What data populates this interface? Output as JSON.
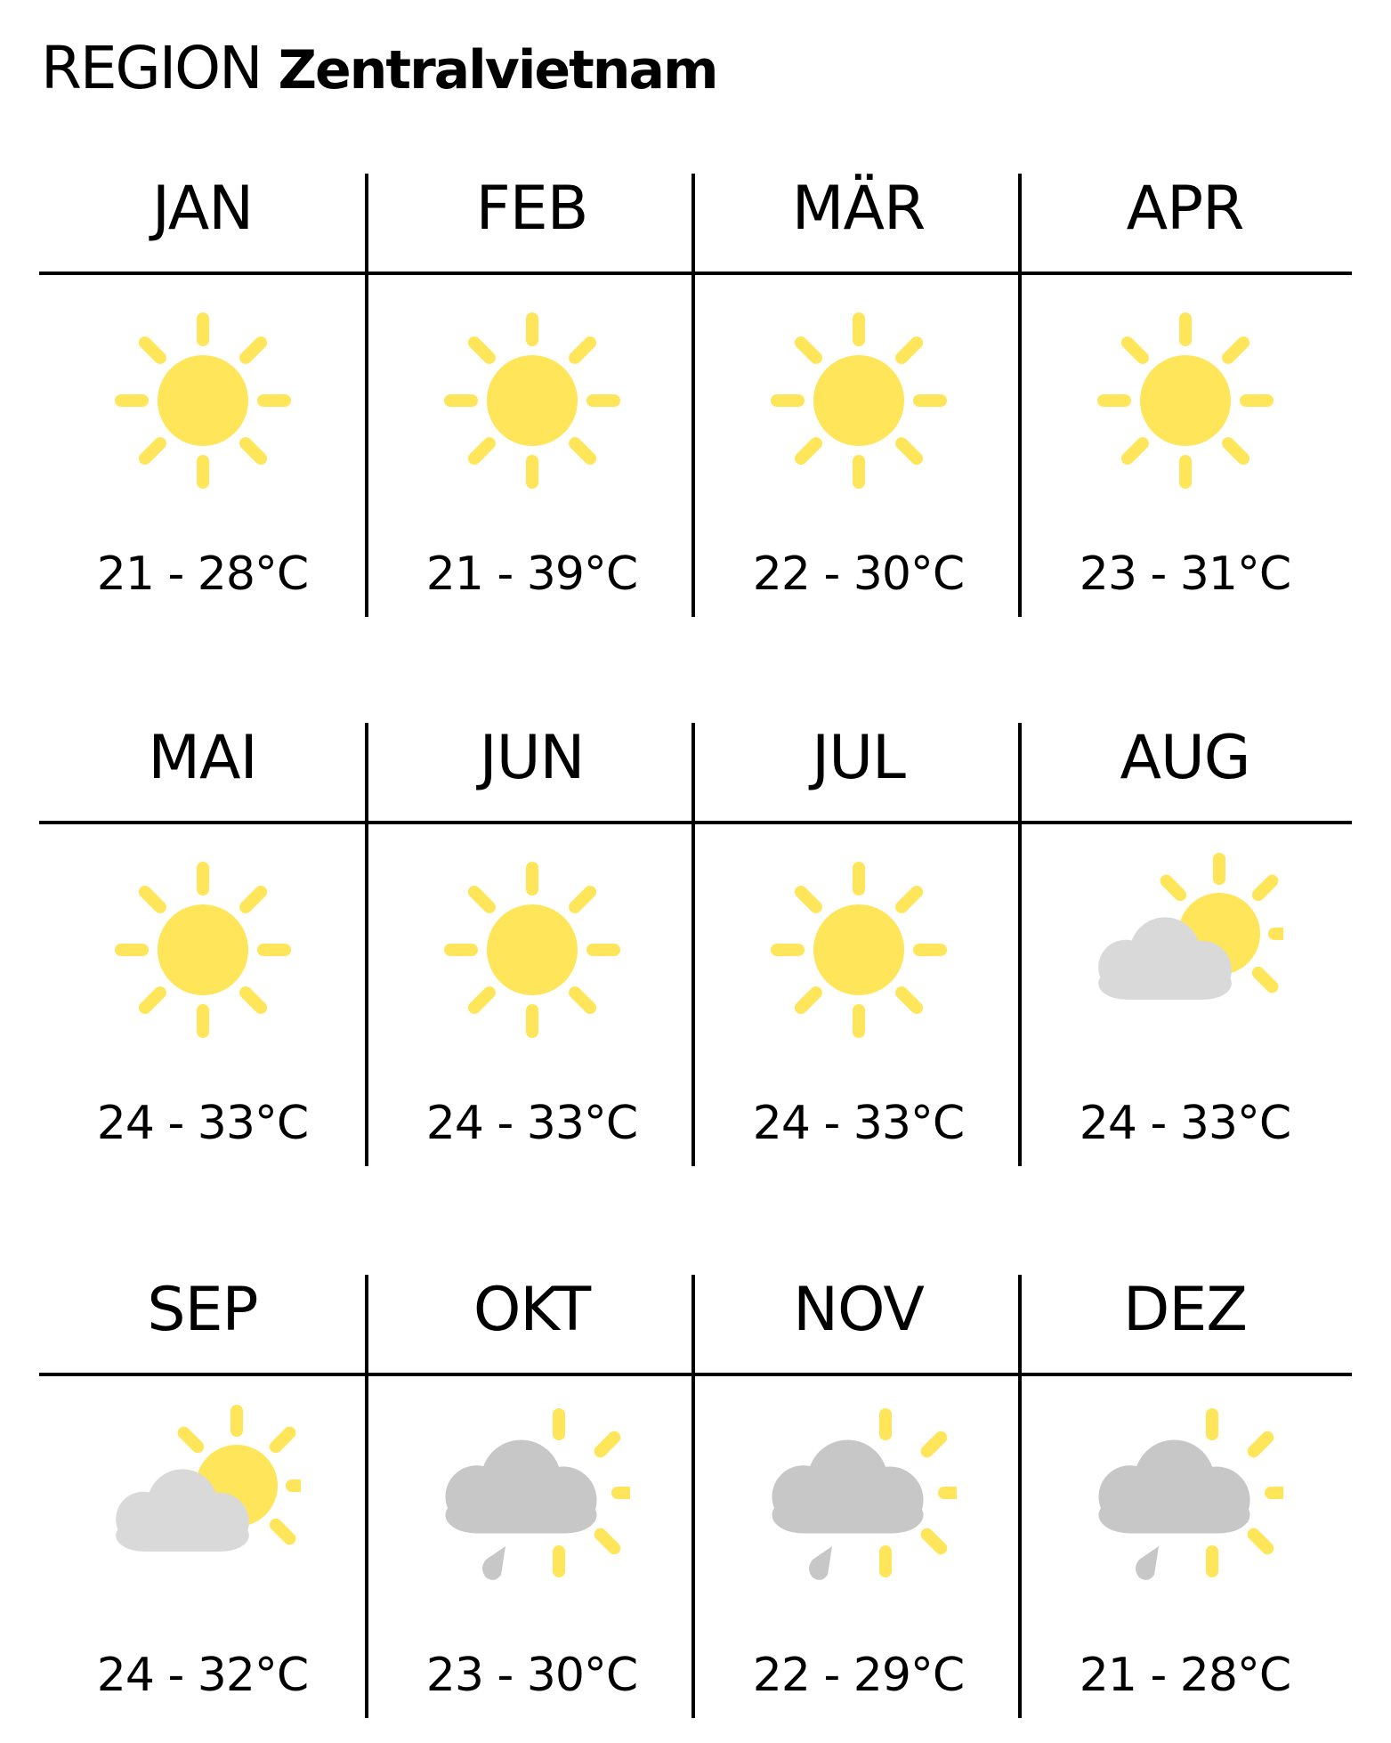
{
  "title": {
    "prefix": "REGION",
    "region": "Zentralvietnam"
  },
  "colors": {
    "sun": "#FFE55A",
    "cloud_light": "#D9D9D9",
    "cloud_rain": "#C6C7C6",
    "line": "#000000"
  },
  "months": [
    {
      "label": "JAN",
      "temp": "21 - 28°C",
      "icon": "sun-icon"
    },
    {
      "label": "FEB",
      "temp": "21 - 39°C",
      "icon": "sun-icon"
    },
    {
      "label": "MÄR",
      "temp": "22 - 30°C",
      "icon": "sun-icon"
    },
    {
      "label": "APR",
      "temp": "23 - 31°C",
      "icon": "sun-icon"
    },
    {
      "label": "MAI",
      "temp": "24 - 33°C",
      "icon": "sun-icon"
    },
    {
      "label": "JUN",
      "temp": "24 - 33°C",
      "icon": "sun-icon"
    },
    {
      "label": "JUL",
      "temp": "24 - 33°C",
      "icon": "sun-icon"
    },
    {
      "label": "AUG",
      "temp": "24 - 33°C",
      "icon": "partly-cloudy-icon"
    },
    {
      "label": "SEP",
      "temp": "24 - 32°C",
      "icon": "partly-cloudy-icon"
    },
    {
      "label": "OKT",
      "temp": "23 - 30°C",
      "icon": "rain-cloud-sun-icon"
    },
    {
      "label": "NOV",
      "temp": "22 - 29°C",
      "icon": "rain-cloud-sun-icon"
    },
    {
      "label": "DEZ",
      "temp": "21 - 28°C",
      "icon": "rain-cloud-sun-icon"
    }
  ]
}
